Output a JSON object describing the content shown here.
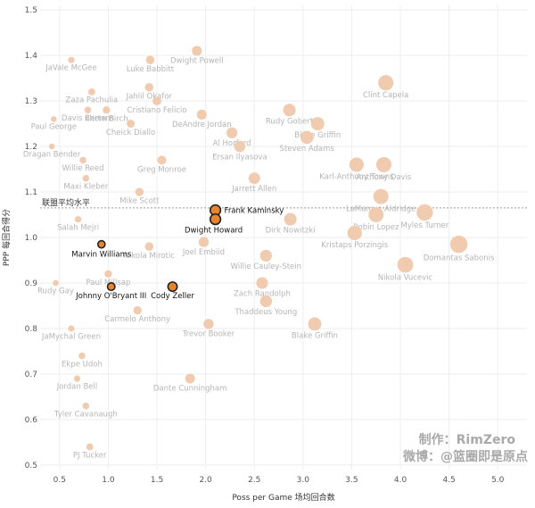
{
  "chart_data": {
    "type": "scatter",
    "xlabel": "Poss per Game 场均回合数",
    "ylabel": "PPP 每回合得分",
    "xlim": [
      0.3,
      5.3
    ],
    "ylim": [
      0.49,
      1.51
    ],
    "xticks": [
      0.5,
      1.0,
      1.5,
      2.0,
      2.5,
      3.0,
      3.5,
      4.0,
      4.5,
      5.0
    ],
    "yticks": [
      0.5,
      0.6,
      0.7,
      0.8,
      0.9,
      1.0,
      1.1,
      1.2,
      1.3,
      1.4,
      1.5
    ],
    "grid": "both",
    "reference_line": {
      "y": 1.065,
      "label": "联盟平均水平"
    },
    "colors": {
      "point": "#f1cbb0",
      "highlight": "#e8832e",
      "highlight_stroke": "#222222",
      "grid": "#eeeeee"
    },
    "labeled_points": [
      {
        "name": "JaVale McGee",
        "x": 0.62,
        "y": 1.39
      },
      {
        "name": "Luke Babbitt",
        "x": 1.43,
        "y": 1.39
      },
      {
        "name": "Dwight Powell",
        "x": 1.91,
        "y": 1.41
      },
      {
        "name": "Zaza Pachulia",
        "x": 0.83,
        "y": 1.32
      },
      {
        "name": "Jahlil Okafor",
        "x": 1.42,
        "y": 1.33
      },
      {
        "name": "Davis Bertans",
        "x": 0.79,
        "y": 1.28
      },
      {
        "name": "Khem Birch",
        "x": 0.98,
        "y": 1.28
      },
      {
        "name": "Cristiano Felicio",
        "x": 1.5,
        "y": 1.3
      },
      {
        "name": "Clint Capela",
        "x": 3.85,
        "y": 1.34
      },
      {
        "name": "DeAndre Jordan",
        "x": 1.96,
        "y": 1.27
      },
      {
        "name": "Rudy Gobert",
        "x": 2.86,
        "y": 1.28
      },
      {
        "name": "Paul George",
        "x": 0.44,
        "y": 1.26
      },
      {
        "name": "Cheick Diallo",
        "x": 1.23,
        "y": 1.25
      },
      {
        "name": "Blake Griffin",
        "x": 3.15,
        "y": 1.25
      },
      {
        "name": "Al Horford",
        "x": 2.27,
        "y": 1.23
      },
      {
        "name": "Dragan Bender",
        "x": 0.42,
        "y": 1.2
      },
      {
        "name": "Ersan Ilyasova",
        "x": 2.35,
        "y": 1.2
      },
      {
        "name": "Steven Adams",
        "x": 3.04,
        "y": 1.22
      },
      {
        "name": "Anthony Davis",
        "x": 3.83,
        "y": 1.16
      },
      {
        "name": "Willie Reed",
        "x": 0.74,
        "y": 1.17
      },
      {
        "name": "Greg Monroe",
        "x": 1.55,
        "y": 1.17
      },
      {
        "name": "Maxi Kleber",
        "x": 0.77,
        "y": 1.13
      },
      {
        "name": "Jarrett Allen",
        "x": 2.5,
        "y": 1.13
      },
      {
        "name": "Karl-Anthony Towns",
        "x": 3.55,
        "y": 1.16
      },
      {
        "name": "LaMarcus Aldridge",
        "x": 3.8,
        "y": 1.09
      },
      {
        "name": "Mike Scott",
        "x": 1.32,
        "y": 1.1
      },
      {
        "name": "Salah Mejri",
        "x": 0.69,
        "y": 1.04
      },
      {
        "name": "Robin Lopez",
        "x": 3.75,
        "y": 1.05
      },
      {
        "name": "Myles Turner",
        "x": 4.25,
        "y": 1.055
      },
      {
        "name": "Dirk Nowitzki",
        "x": 2.87,
        "y": 1.04
      },
      {
        "name": "Kristaps Porzingis",
        "x": 3.53,
        "y": 1.01
      },
      {
        "name": "Domantas Sabonis",
        "x": 4.6,
        "y": 0.985
      },
      {
        "name": "Joel Embiid",
        "x": 1.98,
        "y": 0.99
      },
      {
        "name": "Nikola Mirotic",
        "x": 1.42,
        "y": 0.98
      },
      {
        "name": "Nikola Vucevic",
        "x": 4.05,
        "y": 0.94
      },
      {
        "name": "Willie Cauley-Stein",
        "x": 2.62,
        "y": 0.96
      },
      {
        "name": "Paul Millsap",
        "x": 1.0,
        "y": 0.92
      },
      {
        "name": "Rudy Gay",
        "x": 0.46,
        "y": 0.9
      },
      {
        "name": "Zach Randolph",
        "x": 2.58,
        "y": 0.9
      },
      {
        "name": "Thaddeus Young",
        "x": 2.62,
        "y": 0.86
      },
      {
        "name": "Carmelo Anthony",
        "x": 1.3,
        "y": 0.84
      },
      {
        "name": "Blake Griffin",
        "x": 3.12,
        "y": 0.81
      },
      {
        "name": "Trevor Booker",
        "x": 2.03,
        "y": 0.81
      },
      {
        "name": "JaMychal Green",
        "x": 0.62,
        "y": 0.8
      },
      {
        "name": "Ekpe Udoh",
        "x": 0.73,
        "y": 0.74
      },
      {
        "name": "Jordan Bell",
        "x": 0.68,
        "y": 0.69
      },
      {
        "name": "Dante Cunningham",
        "x": 1.84,
        "y": 0.69
      },
      {
        "name": "Tyler Cavanaugh",
        "x": 0.77,
        "y": 0.63
      },
      {
        "name": "PJ Tucker",
        "x": 0.81,
        "y": 0.54
      }
    ],
    "highlight_points": [
      {
        "name": "Frank Kaminsky",
        "x": 2.1,
        "y": 1.06
      },
      {
        "name": "Dwight Howard",
        "x": 2.1,
        "y": 1.04
      },
      {
        "name": "Marvin Williams",
        "x": 0.93,
        "y": 0.985
      },
      {
        "name": "Johnny O'Bryant III",
        "x": 1.03,
        "y": 0.892
      },
      {
        "name": "Cody Zeller",
        "x": 1.66,
        "y": 0.892
      }
    ],
    "watermark": [
      "制作：RimZero",
      "微博：@篮圈即是原点"
    ]
  }
}
